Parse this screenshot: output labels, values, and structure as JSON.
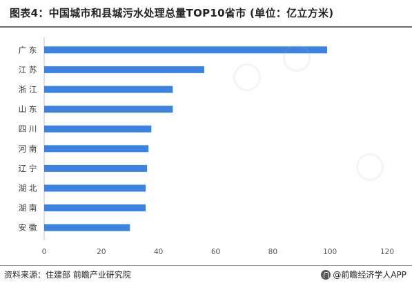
{
  "title": "图表4：中国城市和县城污水处理总量TOP10省市 (单位：亿立方米)",
  "footer": {
    "source": "资料来源：住建部 前瞻产业研究院",
    "brand": "@前瞻经济学人APP"
  },
  "chart_data": {
    "type": "bar",
    "orientation": "horizontal",
    "categories": [
      "广 东",
      "江 苏",
      "浙 江",
      "山 东",
      "四 川",
      "河 南",
      "辽 宁",
      "湖 北",
      "湖 南",
      "安 徽"
    ],
    "values": [
      99,
      56,
      45,
      45,
      37.5,
      36.5,
      36,
      35.5,
      35.5,
      30
    ],
    "xlim": [
      0,
      120
    ],
    "xticks": [
      0,
      20,
      40,
      60,
      80,
      100,
      120
    ],
    "bar_color": "#3c82e0",
    "grid": false,
    "legend": "none"
  }
}
